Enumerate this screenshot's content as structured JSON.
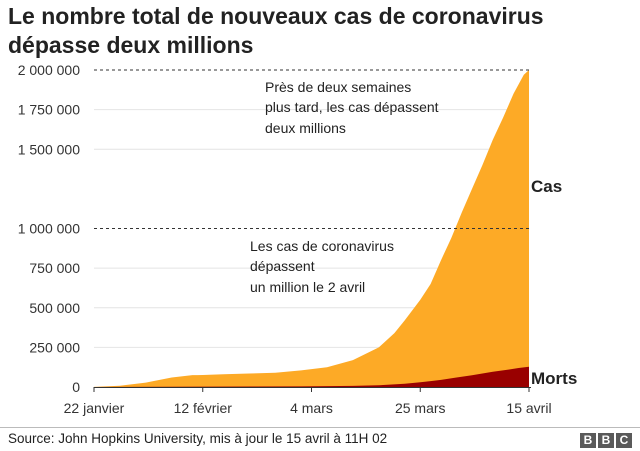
{
  "title_lines": [
    "Le nombre total de nouveaux cas de coronavirus",
    "dépasse deux millions"
  ],
  "chart_data": {
    "type": "area",
    "title": "Le nombre total de nouveaux cas de coronavirus dépasse deux millions",
    "x_tick_labels": [
      "22 janvier",
      "12 février",
      "4 mars",
      "25 mars",
      "15 avril"
    ],
    "x_tick_days": [
      0,
      21,
      42,
      63,
      84
    ],
    "y_tick_labels": [
      "0",
      "250 000",
      "500 000",
      "750 000",
      "1 000 000",
      "1 500 000",
      "1 750 000",
      "2 000 000"
    ],
    "y_ticks": [
      0,
      250000,
      500000,
      750000,
      1000000,
      1500000,
      1750000,
      2000000
    ],
    "ylim": [
      0,
      2000000
    ],
    "reference_lines": [
      1000000,
      2000000
    ],
    "series": [
      {
        "name": "Cas",
        "color": "#fdaa26",
        "days": [
          0,
          5,
          10,
          15,
          19,
          20,
          21,
          25,
          30,
          35,
          40,
          45,
          50,
          55,
          58,
          60,
          63,
          65,
          67,
          69,
          71,
          73,
          75,
          77,
          79,
          81,
          83,
          84
        ],
        "values": [
          555,
          7800,
          28000,
          60000,
          75000,
          75200,
          76000,
          80000,
          85000,
          90000,
          105000,
          125000,
          170000,
          250000,
          340000,
          420000,
          550000,
          650000,
          800000,
          940000,
          1100000,
          1250000,
          1400000,
          1560000,
          1700000,
          1850000,
          1970000,
          2000000
        ]
      },
      {
        "name": "Morts",
        "color": "#990000",
        "days": [
          0,
          40,
          50,
          55,
          60,
          63,
          65,
          67,
          70,
          73,
          75,
          77,
          80,
          82,
          84
        ],
        "values": [
          17,
          3600,
          7000,
          11000,
          20000,
          30000,
          37000,
          45000,
          60000,
          74000,
          85000,
          96000,
          110000,
          120000,
          128000
        ]
      }
    ],
    "annotations": [
      {
        "lines": [
          "Près de deux semaines",
          "plus tard, les cas dépassent",
          "deux millions"
        ]
      },
      {
        "lines": [
          "Les cas de coronavirus",
          "dépassent",
          "un million le 2 avril"
        ]
      }
    ]
  },
  "footer": {
    "source": "Source: John Hopkins University, mis à jour le 15 avril à 11H 02",
    "logo_letters": [
      "B",
      "B",
      "C"
    ]
  }
}
